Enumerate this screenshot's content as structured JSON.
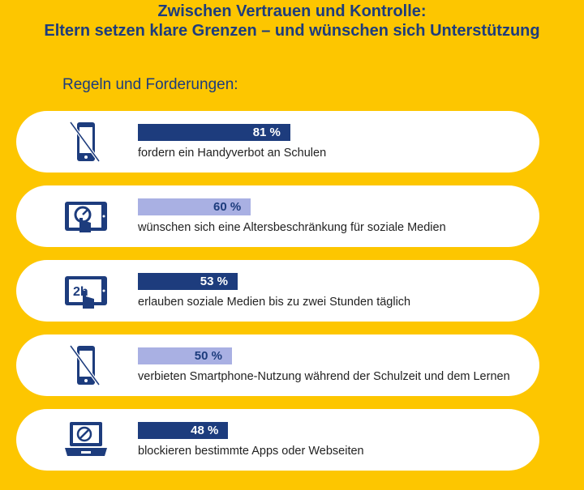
{
  "title_line1": "Zwischen Vertrauen und Kontrolle:",
  "title_line2": "Eltern setzen klare Grenzen – und wünschen sich Unterstützung",
  "subtitle": "Regeln und Forderungen:",
  "colors": {
    "background": "#fdc600",
    "dark_bar": "#1d3c7d",
    "light_bar": "#a9b0e3",
    "pill": "#ffffff"
  },
  "chart_data": {
    "type": "bar",
    "orientation": "horizontal",
    "title": "Regeln und Forderungen:",
    "categories": [
      "fordern ein Handyverbot an Schulen",
      "wünschen sich eine Altersbeschränkung für soziale Medien",
      "erlauben soziale Medien bis zu zwei Stunden täglich",
      "verbieten Smartphone-Nutzung während der Schulzeit und dem Lernen",
      "blockieren bestimmte Apps oder Webseiten"
    ],
    "values": [
      81,
      60,
      53,
      50,
      48
    ],
    "value_labels": [
      "81 %",
      "60 %",
      "53 %",
      "50 %",
      "48 %"
    ],
    "bar_styles": [
      "dark",
      "light",
      "dark",
      "light",
      "dark"
    ],
    "icons": [
      "phone-crossed-icon",
      "tablet-touch-clock-icon",
      "tablet-2h-icon",
      "phone-crossed-icon",
      "laptop-blocked-icon"
    ],
    "icon_texts": [
      "",
      "",
      "2h",
      "",
      ""
    ],
    "xlim": [
      0,
      100
    ]
  }
}
